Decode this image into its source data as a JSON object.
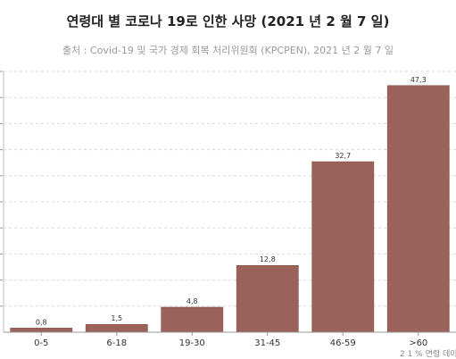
{
  "chart_data": {
    "type": "bar",
    "title": "연령대 별 코로나 19로 인한 사망 (2021 년 2 월 7 일)",
    "subtitle": "출처 : Covid-19 및 국가 경제 회복 처리위원회 (KPCPEN), 2021 년 2 월 7 일",
    "categories": [
      "0-5",
      "6-18",
      "19-30",
      "31-45",
      "46-59",
      ">60"
    ],
    "values": [
      0.8,
      1.5,
      4.8,
      12.8,
      32.7,
      47.3
    ],
    "value_labels": [
      "0,8",
      "1,5",
      "4,8",
      "12,8",
      "32,7",
      "47,3"
    ],
    "ylim": [
      0,
      50
    ],
    "grid": true,
    "bar_color": "#9b6259",
    "note": "2 1 % 연령 데이"
  }
}
